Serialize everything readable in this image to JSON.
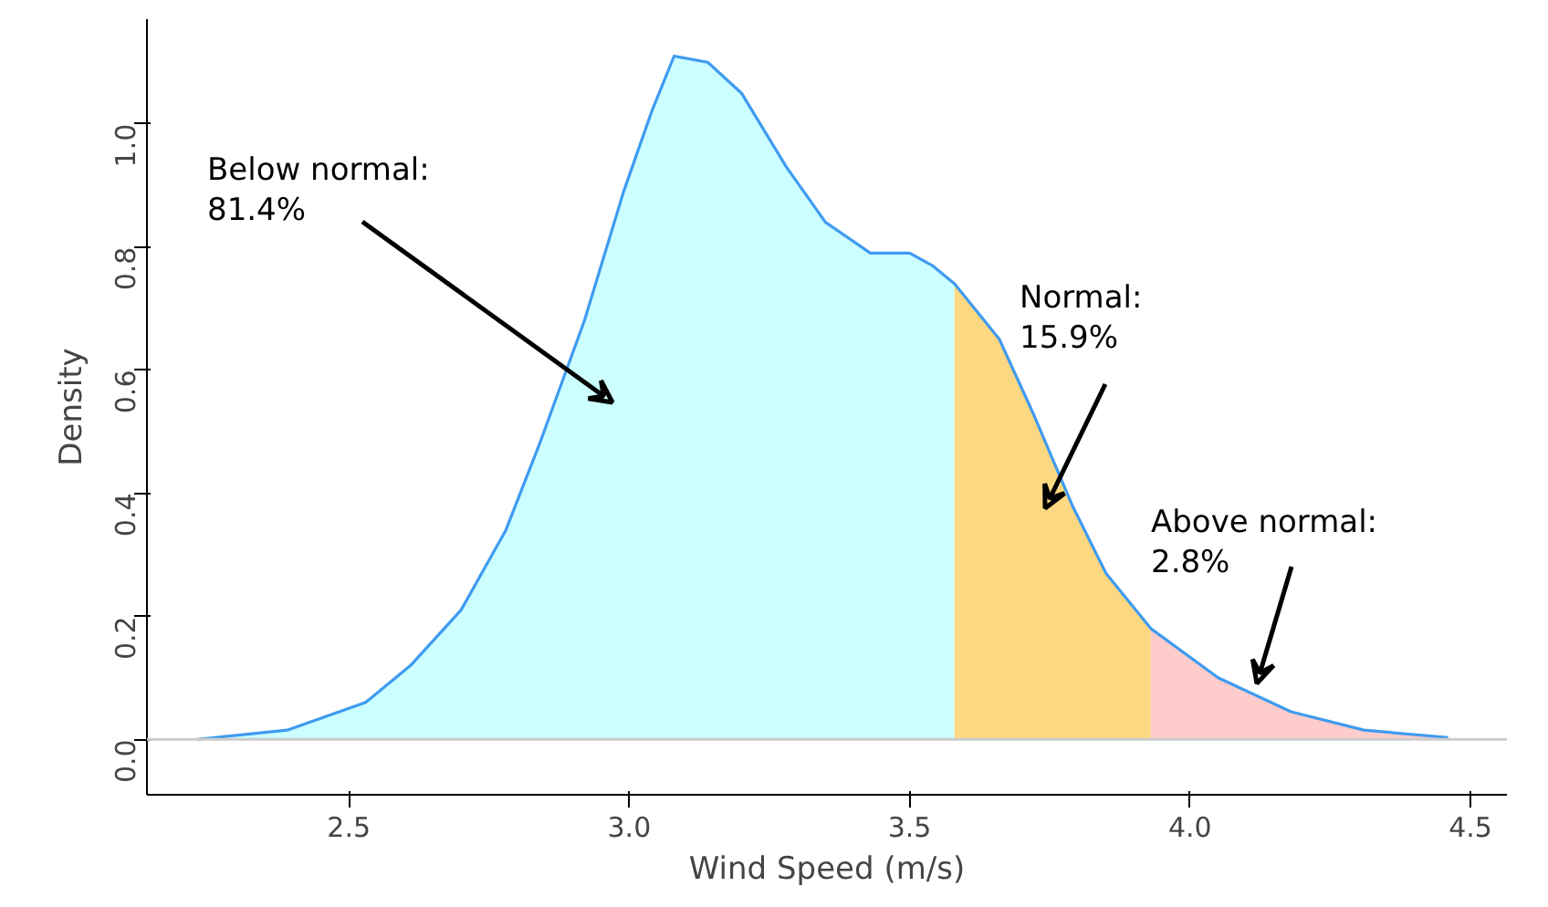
{
  "chart_data": {
    "type": "area",
    "xlabel": "Wind Speed (m/s)",
    "ylabel": "Density",
    "xlim": [
      2.14,
      4.565
    ],
    "ylim": [
      -0.09,
      1.17
    ],
    "xticks": [
      2.5,
      {
        "value": 3,
        "label": "3.0"
      },
      3.5,
      {
        "value": 4,
        "label": "4.0"
      },
      4.5
    ],
    "yticks": [
      {
        "value": 0,
        "label": "0.0"
      },
      0.2,
      0.4,
      0.6,
      0.8,
      {
        "value": 1,
        "label": "1.0"
      }
    ],
    "grid": false,
    "ref_lines": [
      {
        "axis": "y",
        "value": 0,
        "color": "#cccccc"
      }
    ],
    "series": [
      {
        "color": "#ccffff",
        "x": [
          2.23,
          2.39,
          2.53,
          2.61,
          2.7,
          2.78,
          2.84,
          2.92,
          2.99,
          3.04,
          3.08,
          3.14,
          3.2,
          3.28,
          3.35,
          3.43,
          3.5,
          3.54,
          3.58
        ],
        "values": [
          0,
          0.015,
          0.06,
          0.12,
          0.21,
          0.34,
          0.48,
          0.68,
          0.89,
          1.02,
          1.11,
          1.1,
          1.05,
          0.93,
          0.84,
          0.79,
          0.79,
          0.77,
          0.74
        ]
      },
      {
        "color": "#fcd882",
        "x": [
          3.58,
          3.66,
          3.72,
          3.79,
          3.85,
          3.93
        ],
        "values": [
          0.74,
          0.65,
          0.53,
          0.38,
          0.27,
          0.18
        ]
      },
      {
        "color": "#ffcccc",
        "x": [
          3.93,
          4.05,
          4.18,
          4.31,
          4.46
        ],
        "values": [
          0.18,
          0.1,
          0.045,
          0.015,
          0.003
        ]
      },
      {
        "type": "line",
        "color": "#3f9bf0",
        "x": [
          2.23,
          2.39,
          2.53,
          2.61,
          2.7,
          2.78,
          2.84,
          2.92,
          2.99,
          3.04,
          3.08,
          3.14,
          3.2,
          3.28,
          3.35,
          3.43,
          3.5,
          3.54,
          3.58,
          3.66,
          3.72,
          3.79,
          3.85,
          3.93,
          4.05,
          4.18,
          4.31,
          4.46
        ],
        "values": [
          0,
          0.015,
          0.06,
          0.12,
          0.21,
          0.34,
          0.48,
          0.68,
          0.89,
          1.02,
          1.11,
          1.1,
          1.05,
          0.93,
          0.84,
          0.79,
          0.79,
          0.77,
          0.74,
          0.65,
          0.53,
          0.38,
          0.27,
          0.18,
          0.1,
          0.045,
          0.015,
          0.003
        ]
      }
    ],
    "annotations": [
      "Below normal:\n81.4%",
      "Normal:\n15.9%",
      "Above normal:\n2.8%"
    ]
  }
}
